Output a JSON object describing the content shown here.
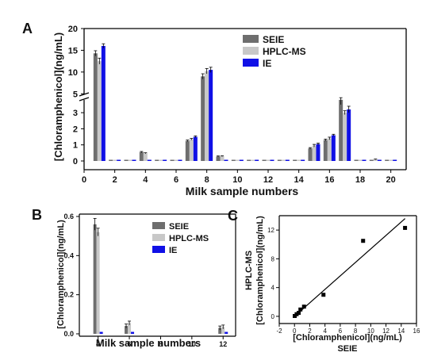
{
  "panel_labels": {
    "a": "A",
    "b": "B",
    "c": "C"
  },
  "colors": {
    "seie": "#6e6e6e",
    "hplc": "#c8c8c8",
    "ie": "#1010e6",
    "axis": "#000000"
  },
  "chart_data": [
    {
      "panel": "A",
      "type": "bar",
      "xlabel": "Milk sample numbers",
      "ylabel": "[Chloramphenicol](ng/mL)",
      "x_ticks": [
        "0",
        "2",
        "4",
        "6",
        "8",
        "10",
        "12",
        "14",
        "16",
        "18",
        "20"
      ],
      "y_ticks_lower": [
        "0",
        "1",
        "2",
        "3"
      ],
      "y_ticks_upper": [
        "5",
        "10",
        "15",
        "20"
      ],
      "axis_break": [
        3.8,
        4.5
      ],
      "ylim": [
        -0.3,
        20
      ],
      "categories": [
        1,
        2,
        3,
        4,
        5,
        6,
        7,
        8,
        9,
        10,
        11,
        12,
        13,
        14,
        15,
        16,
        17,
        18,
        19,
        20
      ],
      "series": [
        {
          "name": "SEIE",
          "values": [
            14.3,
            0,
            0,
            0.55,
            0.02,
            0,
            1.25,
            9.0,
            0.28,
            0,
            0,
            0,
            0,
            0,
            0.78,
            1.3,
            3.8,
            0,
            0.04,
            0
          ],
          "errors": [
            0.6,
            0,
            0,
            0.04,
            0,
            0,
            0.05,
            0.6,
            0.03,
            0,
            0,
            0,
            0,
            0,
            0.05,
            0.06,
            0.3,
            0,
            0,
            0
          ]
        },
        {
          "name": "HPLC-MS",
          "values": [
            12.5,
            0,
            0,
            0.48,
            0.02,
            0,
            1.35,
            10.2,
            0.3,
            0,
            0,
            0,
            0,
            0,
            0.95,
            1.4,
            3.0,
            0,
            0.1,
            0
          ],
          "errors": [
            0.7,
            0,
            0,
            0.03,
            0,
            0,
            0.05,
            0.6,
            0.02,
            0,
            0,
            0,
            0,
            0,
            0.08,
            0.08,
            0.12,
            0,
            0.02,
            0
          ]
        },
        {
          "name": "IE",
          "values": [
            16.0,
            0,
            0,
            0,
            0,
            0,
            1.5,
            10.5,
            0,
            0,
            0,
            0,
            0,
            0,
            1.05,
            1.6,
            3.2,
            0,
            0,
            0
          ],
          "errors": [
            0.5,
            0,
            0,
            0,
            0,
            0,
            0.06,
            0.6,
            0,
            0,
            0,
            0,
            0,
            0,
            0.06,
            0.06,
            0.2,
            0,
            0,
            0
          ]
        }
      ],
      "legend_position": "top-right"
    },
    {
      "panel": "B",
      "type": "bar",
      "xlabel": "Milk sample numbers",
      "ylabel": "[Chloramphenicol](ng/mL)",
      "x_ticks": [
        "4",
        "6",
        "8",
        "10",
        "12"
      ],
      "y_ticks": [
        "0.0",
        "0.2",
        "0.4",
        "0.6"
      ],
      "ylim": [
        -0.02,
        0.6
      ],
      "categories": [
        4,
        6,
        12
      ],
      "series": [
        {
          "name": "SEIE",
          "values": [
            0.56,
            0.04,
            0.03
          ],
          "errors": [
            0.03,
            0.01,
            0.01
          ]
        },
        {
          "name": "HPLC-MS",
          "values": [
            0.52,
            0.055,
            0.035
          ],
          "errors": [
            0.02,
            0.01,
            0.01
          ]
        },
        {
          "name": "IE",
          "values": [
            0.01,
            0.01,
            0.01
          ],
          "errors": [
            0,
            0,
            0
          ]
        }
      ],
      "legend_position": "top-right"
    },
    {
      "panel": "C",
      "type": "scatter",
      "xlabel": "[Chloramphenicol](ng/mL)",
      "xlabel2": "SEIE",
      "ylabel": "[Chloramphenicol](ng/mL)",
      "ylabel2": "HPLC-MS",
      "x_ticks": [
        "-2",
        "0",
        "2",
        "4",
        "6",
        "8",
        "10",
        "12",
        "14",
        "16"
      ],
      "y_ticks": [
        "0",
        "4",
        "8",
        "12"
      ],
      "xlim": [
        -2,
        16
      ],
      "ylim": [
        -1,
        14
      ],
      "points": [
        {
          "x": 0.03,
          "y": 0.05
        },
        {
          "x": 0.28,
          "y": 0.3
        },
        {
          "x": 0.55,
          "y": 0.48
        },
        {
          "x": 0.78,
          "y": 0.95
        },
        {
          "x": 1.25,
          "y": 1.35
        },
        {
          "x": 3.8,
          "y": 3.0
        },
        {
          "x": 9.0,
          "y": 10.5
        },
        {
          "x": 14.5,
          "y": 12.3
        }
      ],
      "fit_line": {
        "x": [
          0,
          14.5
        ],
        "y": [
          0.0,
          13.6
        ]
      }
    }
  ]
}
